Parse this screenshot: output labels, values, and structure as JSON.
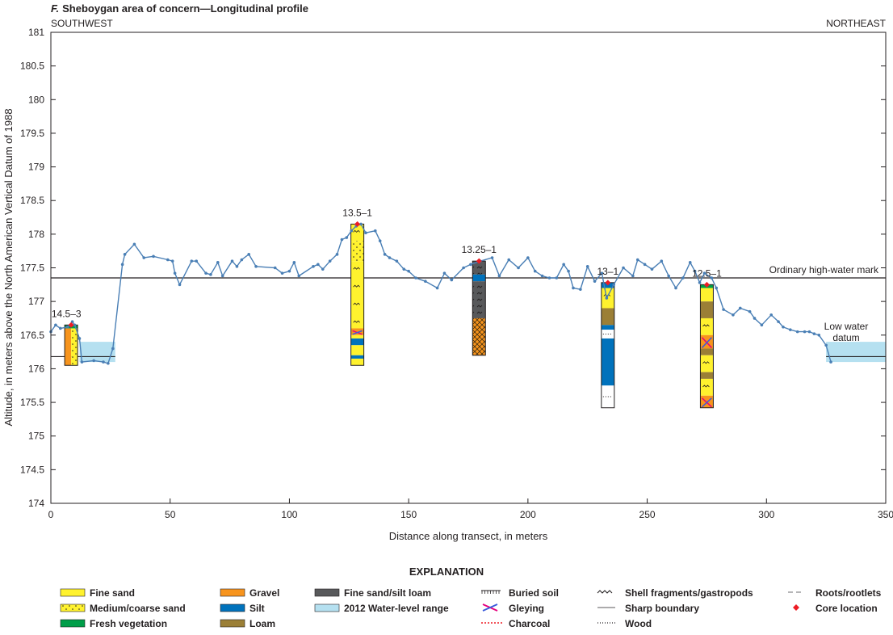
{
  "chart_data": {
    "type": "line",
    "title_letter": "F.",
    "title": "Sheboygan area of concern—Longitudinal profile",
    "direction_left": "SOUTHWEST",
    "direction_right": "NORTHEAST",
    "xlabel": "Distance along transect, in meters",
    "ylabel": "Altitude, in meters above the North American Vertical Datum of 1988",
    "xlim": [
      0,
      350
    ],
    "ylim": [
      174,
      181
    ],
    "xticks": [
      0,
      50,
      100,
      150,
      200,
      250,
      300,
      350
    ],
    "yticks": [
      174,
      174.5,
      175,
      175.5,
      176,
      176.5,
      177,
      177.5,
      178,
      178.5,
      179,
      179.5,
      180,
      180.5,
      181
    ],
    "line_color": "#4a7fb5",
    "profile": {
      "x": [
        0,
        2,
        4,
        7,
        9,
        10,
        12,
        13,
        18,
        22,
        24,
        26,
        30,
        31,
        35,
        39,
        43,
        49,
        51,
        52,
        54,
        59,
        61,
        65,
        67,
        70,
        72,
        76,
        78,
        80,
        83,
        86,
        94,
        97,
        100,
        102,
        104,
        110,
        112,
        114,
        117,
        120,
        122,
        124,
        126,
        128,
        130,
        132,
        136,
        138,
        140,
        142,
        145,
        148,
        150,
        153,
        157,
        162,
        165,
        168,
        173,
        176,
        180,
        185,
        188,
        192,
        196,
        200,
        203,
        206,
        209,
        212,
        215,
        217,
        219,
        222,
        225,
        228,
        231,
        233,
        236,
        240,
        244,
        246,
        249,
        252,
        256,
        259,
        262,
        265,
        268,
        270,
        272,
        274,
        277,
        279,
        282,
        286,
        289,
        293,
        295,
        298,
        302,
        305,
        307,
        310,
        313,
        316,
        318,
        320,
        322,
        325,
        327
      ],
      "y": [
        176.55,
        176.65,
        176.6,
        176.62,
        176.7,
        176.65,
        176.45,
        176.1,
        176.12,
        176.1,
        176.08,
        176.3,
        177.55,
        177.7,
        177.85,
        177.65,
        177.67,
        177.62,
        177.6,
        177.42,
        177.25,
        177.6,
        177.6,
        177.42,
        177.4,
        177.58,
        177.38,
        177.6,
        177.52,
        177.62,
        177.7,
        177.52,
        177.5,
        177.42,
        177.45,
        177.58,
        177.38,
        177.52,
        177.55,
        177.48,
        177.6,
        177.7,
        177.92,
        177.95,
        178.05,
        178.12,
        178.15,
        178.02,
        178.05,
        177.9,
        177.7,
        177.65,
        177.6,
        177.48,
        177.45,
        177.35,
        177.3,
        177.2,
        177.42,
        177.32,
        177.5,
        177.55,
        177.6,
        177.65,
        177.38,
        177.62,
        177.5,
        177.65,
        177.45,
        177.38,
        177.35,
        177.35,
        177.55,
        177.45,
        177.2,
        177.18,
        177.52,
        177.3,
        177.42,
        177.05,
        177.25,
        177.5,
        177.38,
        177.62,
        177.55,
        177.48,
        177.6,
        177.38,
        177.2,
        177.35,
        177.58,
        177.45,
        177.28,
        177.42,
        177.35,
        177.2,
        176.88,
        176.8,
        176.9,
        176.85,
        176.75,
        176.65,
        176.8,
        176.7,
        176.62,
        176.58,
        176.55,
        176.55,
        176.55,
        176.52,
        176.5,
        176.35,
        176.1
      ]
    },
    "reference_lines": [
      {
        "label": "Ordinary high-water mark",
        "y": 177.35
      },
      {
        "label": "Low water datum",
        "label_lines": [
          "Low water",
          "datum"
        ],
        "y": 176.18
      }
    ],
    "water_ranges": [
      {
        "x0": 12,
        "x1": 27,
        "y0": 176.1,
        "y1": 176.4
      },
      {
        "x0": 325,
        "x1": 350,
        "y0": 176.1,
        "y1": 176.4
      }
    ],
    "cores": [
      {
        "label": "14.5–3",
        "x": 8.5,
        "label_x": 6.5,
        "top": 176.65,
        "layers": [
          {
            "from": 176.65,
            "to": 176.6,
            "type": "fresh_vegetation"
          },
          {
            "from": 176.6,
            "to": 176.05,
            "type": "medium_coarse_sand",
            "side_type": "gravel"
          }
        ]
      },
      {
        "label": "13.5–1",
        "x": 128.5,
        "label_x": 128.5,
        "top": 178.15,
        "layers": [
          {
            "from": 178.15,
            "to": 177.9,
            "type": "fine_sand"
          },
          {
            "from": 177.9,
            "to": 177.6,
            "type": "medium_coarse_sand"
          },
          {
            "from": 177.6,
            "to": 176.6,
            "type": "fine_sand"
          },
          {
            "from": 176.6,
            "to": 176.5,
            "type": "gleying"
          },
          {
            "from": 176.5,
            "to": 176.45,
            "type": "fine_sand"
          },
          {
            "from": 176.45,
            "to": 176.35,
            "type": "silt"
          },
          {
            "from": 176.35,
            "to": 176.2,
            "type": "fine_sand"
          },
          {
            "from": 176.2,
            "to": 176.15,
            "type": "silt"
          },
          {
            "from": 176.15,
            "to": 176.05,
            "type": "fine_sand"
          }
        ]
      },
      {
        "label": "13.25–1",
        "x": 179.5,
        "label_x": 179.5,
        "top": 177.6,
        "layers": [
          {
            "from": 177.6,
            "to": 177.4,
            "type": "fine_sand_silt_loam"
          },
          {
            "from": 177.4,
            "to": 177.3,
            "type": "silt"
          },
          {
            "from": 177.3,
            "to": 176.75,
            "type": "fine_sand_silt_loam"
          },
          {
            "from": 176.75,
            "to": 176.2,
            "type": "gravel_dark"
          }
        ]
      },
      {
        "label": "13–1",
        "x": 233.5,
        "label_x": 233.5,
        "top": 177.28,
        "layers": [
          {
            "from": 177.28,
            "to": 177.2,
            "type": "silt"
          },
          {
            "from": 177.2,
            "to": 176.9,
            "type": "fine_sand"
          },
          {
            "from": 176.9,
            "to": 176.65,
            "type": "loam"
          },
          {
            "from": 176.65,
            "to": 176.58,
            "type": "silt"
          },
          {
            "from": 176.58,
            "to": 176.45,
            "type": "white"
          },
          {
            "from": 176.45,
            "to": 175.75,
            "type": "silt"
          },
          {
            "from": 175.75,
            "to": 175.42,
            "type": "white"
          }
        ]
      },
      {
        "label": "12.5–1",
        "x": 275.0,
        "label_x": 275.0,
        "top": 177.25,
        "layers": [
          {
            "from": 177.25,
            "to": 177.2,
            "type": "fresh_vegetation"
          },
          {
            "from": 177.2,
            "to": 177.0,
            "type": "fine_sand"
          },
          {
            "from": 177.0,
            "to": 176.75,
            "type": "loam"
          },
          {
            "from": 176.75,
            "to": 176.5,
            "type": "fine_sand"
          },
          {
            "from": 176.5,
            "to": 176.3,
            "type": "gleying"
          },
          {
            "from": 176.3,
            "to": 176.2,
            "type": "loam"
          },
          {
            "from": 176.2,
            "to": 175.95,
            "type": "fine_sand"
          },
          {
            "from": 175.95,
            "to": 175.85,
            "type": "loam"
          },
          {
            "from": 175.85,
            "to": 175.6,
            "type": "fine_sand"
          },
          {
            "from": 175.6,
            "to": 175.42,
            "type": "gleying"
          }
        ]
      }
    ],
    "legend": {
      "title": "EXPLANATION",
      "placement": "bottom",
      "items": [
        {
          "label": "Fine sand",
          "symbol": "fill",
          "color": "#fff22e"
        },
        {
          "label": "Medium/coarse sand",
          "symbol": "pattern",
          "color": "#fff22e"
        },
        {
          "label": "Fresh vegetation",
          "symbol": "fill",
          "color": "#009e49"
        },
        {
          "label": "Gravel",
          "symbol": "fill",
          "color": "#f7941d"
        },
        {
          "label": "Silt",
          "symbol": "fill",
          "color": "#0072bc"
        },
        {
          "label": "Loam",
          "symbol": "fill",
          "color": "#9b7f36"
        },
        {
          "label": "Fine sand/silt loam",
          "symbol": "fill",
          "color": "#58595b"
        },
        {
          "label": "2012 Water-level range",
          "symbol": "fill",
          "color": "#b5e0f0"
        },
        {
          "label": "Buried soil",
          "symbol": "buried"
        },
        {
          "label": "Gleying",
          "symbol": "gley"
        },
        {
          "label": "Charcoal",
          "symbol": "charcoal"
        },
        {
          "label": "Shell fragments/gastropods",
          "symbol": "shell"
        },
        {
          "label": "Sharp boundary",
          "symbol": "sharp"
        },
        {
          "label": "Wood",
          "symbol": "wood"
        },
        {
          "label": "Roots/rootlets",
          "symbol": "roots"
        },
        {
          "label": "Core location",
          "symbol": "diamond",
          "color": "#ed1c24"
        }
      ]
    }
  }
}
